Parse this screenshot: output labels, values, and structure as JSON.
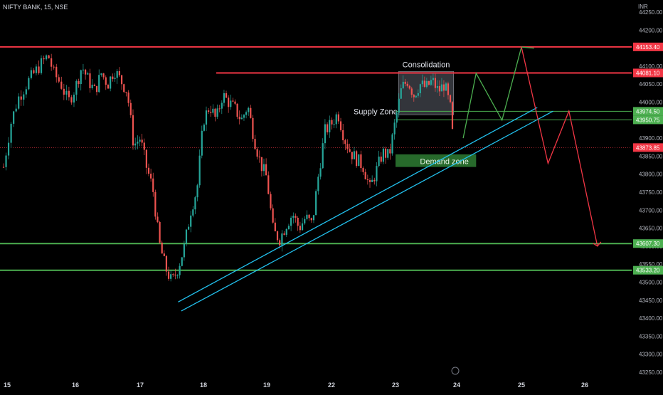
{
  "header": {
    "symbol": "NIFTY BANK, 15, NSE",
    "currency": "INR"
  },
  "colors": {
    "background": "#000000",
    "up_candle": "#26a69a",
    "down_candle": "#ef5350",
    "resistance_line": "#f23645",
    "support_line": "#4caf50",
    "trendline": "#22c1ee",
    "projection_up": "#4caf50",
    "projection_down": "#f23645",
    "price_tag_red": "#f23645",
    "price_tag_green": "#4caf50",
    "demand_zone": "#2e7d32",
    "consolidation_box": "#5d606b",
    "axis_text": "#b2b5be"
  },
  "chart_data": {
    "type": "candlestick",
    "title": "NIFTY BANK, 15, NSE",
    "ylabel": "INR",
    "ylim": [
      43240,
      44270
    ],
    "y_ticks": [
      44250,
      44200,
      44150,
      44100,
      44050,
      44000,
      43950,
      43900,
      43850,
      43800,
      43750,
      43700,
      43650,
      43600,
      43550,
      43500,
      43450,
      43400,
      43350,
      43300,
      43250
    ],
    "x_ticks": [
      {
        "label": "15",
        "day": 0
      },
      {
        "label": "16",
        "day": 1
      },
      {
        "label": "17",
        "day": 2
      },
      {
        "label": "18",
        "day": 3
      },
      {
        "label": "19",
        "day": 4
      },
      {
        "label": "22",
        "day": 5
      },
      {
        "label": "23",
        "day": 6
      },
      {
        "label": "24",
        "day": 7
      },
      {
        "label": "25",
        "day": 8
      },
      {
        "label": "26",
        "day": 9
      }
    ],
    "price_series": [
      {
        "day": 0.0,
        "price": 43820
      },
      {
        "day": 0.1,
        "price": 43940
      },
      {
        "day": 0.2,
        "price": 44010
      },
      {
        "day": 0.35,
        "price": 44060
      },
      {
        "day": 0.5,
        "price": 44100
      },
      {
        "day": 0.62,
        "price": 44130
      },
      {
        "day": 0.7,
        "price": 44080
      },
      {
        "day": 0.8,
        "price": 44050
      },
      {
        "day": 0.9,
        "price": 44000
      },
      {
        "day": 1.0,
        "price": 44040
      },
      {
        "day": 1.1,
        "price": 44100
      },
      {
        "day": 1.2,
        "price": 44060
      },
      {
        "day": 1.3,
        "price": 44030
      },
      {
        "day": 1.4,
        "price": 44080
      },
      {
        "day": 1.5,
        "price": 44050
      },
      {
        "day": 1.6,
        "price": 44090
      },
      {
        "day": 1.7,
        "price": 44060
      },
      {
        "day": 1.8,
        "price": 44030
      },
      {
        "day": 1.9,
        "price": 43880
      },
      {
        "day": 2.0,
        "price": 43900
      },
      {
        "day": 2.1,
        "price": 43820
      },
      {
        "day": 2.2,
        "price": 43760
      },
      {
        "day": 2.3,
        "price": 43610
      },
      {
        "day": 2.4,
        "price": 43540
      },
      {
        "day": 2.5,
        "price": 43500
      },
      {
        "day": 2.6,
        "price": 43540
      },
      {
        "day": 2.7,
        "price": 43600
      },
      {
        "day": 2.8,
        "price": 43700
      },
      {
        "day": 2.9,
        "price": 43760
      },
      {
        "day": 3.0,
        "price": 43950
      },
      {
        "day": 3.1,
        "price": 43990
      },
      {
        "day": 3.2,
        "price": 43950
      },
      {
        "day": 3.3,
        "price": 44020
      },
      {
        "day": 3.4,
        "price": 44000
      },
      {
        "day": 3.5,
        "price": 43980
      },
      {
        "day": 3.6,
        "price": 43950
      },
      {
        "day": 3.7,
        "price": 43990
      },
      {
        "day": 3.8,
        "price": 43900
      },
      {
        "day": 3.9,
        "price": 43830
      },
      {
        "day": 4.0,
        "price": 43790
      },
      {
        "day": 4.1,
        "price": 43640
      },
      {
        "day": 4.2,
        "price": 43620
      },
      {
        "day": 4.3,
        "price": 43660
      },
      {
        "day": 4.4,
        "price": 43690
      },
      {
        "day": 4.5,
        "price": 43650
      },
      {
        "day": 4.6,
        "price": 43680
      },
      {
        "day": 4.7,
        "price": 43660
      },
      {
        "day": 4.8,
        "price": 43800
      },
      {
        "day": 4.9,
        "price": 43920
      },
      {
        "day": 5.0,
        "price": 43940
      },
      {
        "day": 5.1,
        "price": 43970
      },
      {
        "day": 5.2,
        "price": 43900
      },
      {
        "day": 5.3,
        "price": 43860
      },
      {
        "day": 5.4,
        "price": 43840
      },
      {
        "day": 5.5,
        "price": 43820
      },
      {
        "day": 5.6,
        "price": 43760
      },
      {
        "day": 5.7,
        "price": 43810
      },
      {
        "day": 5.8,
        "price": 43860
      },
      {
        "day": 5.9,
        "price": 43850
      },
      {
        "day": 6.0,
        "price": 43950
      },
      {
        "day": 6.1,
        "price": 44040
      },
      {
        "day": 6.2,
        "price": 44060
      },
      {
        "day": 6.3,
        "price": 44020
      },
      {
        "day": 6.4,
        "price": 44050
      },
      {
        "day": 6.5,
        "price": 44040
      },
      {
        "day": 6.6,
        "price": 44060
      },
      {
        "day": 6.7,
        "price": 44030
      },
      {
        "day": 6.8,
        "price": 44050
      },
      {
        "day": 6.9,
        "price": 43980
      },
      {
        "day": 6.95,
        "price": 43870
      }
    ],
    "horizontal_levels": [
      {
        "price": 44153.4,
        "label": "44153.40",
        "kind": "resistance"
      },
      {
        "price": 44081.1,
        "label": "44081.10",
        "kind": "resistance"
      },
      {
        "price": 43974.5,
        "label": "43974.50",
        "kind": "support"
      },
      {
        "price": 43950.75,
        "label": "43950.75",
        "kind": "support"
      },
      {
        "price": 43873.85,
        "label": "43873.85",
        "kind": "last_price"
      },
      {
        "price": 43607.3,
        "label": "43607.30",
        "kind": "support"
      },
      {
        "price": 43533.2,
        "label": "43533.20",
        "kind": "support"
      }
    ],
    "trendlines": [
      {
        "start": {
          "day": 2.6,
          "price": 43445
        },
        "end": {
          "day": 8.25,
          "price": 43985
        }
      },
      {
        "start": {
          "day": 2.65,
          "price": 43420
        },
        "end": {
          "day": 8.5,
          "price": 43975
        }
      }
    ],
    "zones": [
      {
        "label": "Consolidation",
        "day_range": [
          6.05,
          6.95
        ],
        "price_range": [
          43965,
          44085
        ]
      },
      {
        "label": "Supply Zone",
        "day_range": [
          5.3,
          6.95
        ],
        "price_range": [
          43950.75,
          43974.5
        ]
      },
      {
        "label": "Demand zone",
        "day_range": [
          6.0,
          7.3
        ],
        "price_range": [
          43820,
          43855
        ]
      }
    ],
    "projections": [
      {
        "name": "bullish",
        "points": [
          {
            "day": 7.1,
            "price": 43900
          },
          {
            "day": 7.3,
            "price": 44080
          },
          {
            "day": 7.7,
            "price": 43950
          },
          {
            "day": 8.0,
            "price": 44153
          },
          {
            "day": 8.2,
            "price": 44150
          }
        ]
      },
      {
        "name": "bearish",
        "points": [
          {
            "day": 8.0,
            "price": 44153
          },
          {
            "day": 8.42,
            "price": 43830
          },
          {
            "day": 8.75,
            "price": 43975
          },
          {
            "day": 9.2,
            "price": 43600
          }
        ]
      }
    ]
  }
}
